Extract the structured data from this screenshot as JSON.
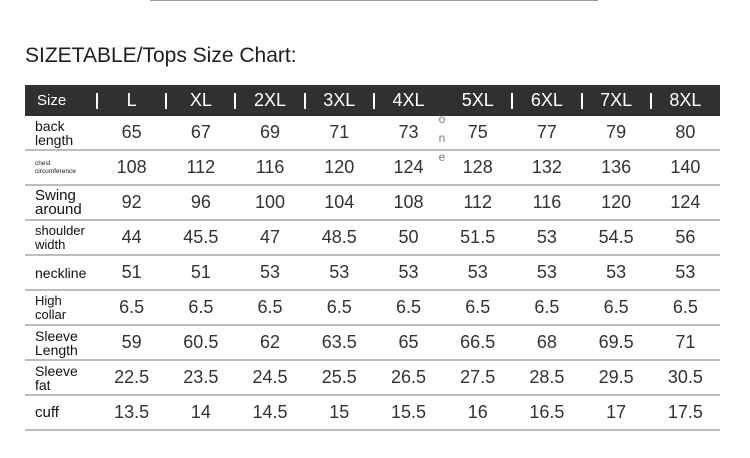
{
  "title": "SIZETABLE/Tops Size Chart:",
  "table": {
    "header_label": "Size",
    "sizes": [
      "L",
      "XL",
      "2XL",
      "3XL",
      "4XL",
      "5XL",
      "6XL",
      "7XL",
      "8XL"
    ],
    "rows": [
      {
        "label_lines": [
          "back",
          "length"
        ],
        "values": [
          "65",
          "67",
          "69",
          "71",
          "73",
          "75",
          "77",
          "79",
          "80"
        ]
      },
      {
        "label_lines": [
          "chest",
          "circumference"
        ],
        "values": [
          "108",
          "112",
          "116",
          "120",
          "124",
          "128",
          "132",
          "136",
          "140"
        ]
      },
      {
        "label_lines": [
          "Swing",
          "around"
        ],
        "values": [
          "92",
          "96",
          "100",
          "104",
          "108",
          "112",
          "116",
          "120",
          "124"
        ]
      },
      {
        "label_lines": [
          "shoulder",
          "width"
        ],
        "values": [
          "44",
          "45.5",
          "47",
          "48.5",
          "50",
          "51.5",
          "53",
          "54.5",
          "56"
        ]
      },
      {
        "label_lines": [
          "neckline"
        ],
        "values": [
          "51",
          "51",
          "53",
          "53",
          "53",
          "53",
          "53",
          "53",
          "53"
        ]
      },
      {
        "label_lines": [
          "High",
          "collar"
        ],
        "values": [
          "6.5",
          "6.5",
          "6.5",
          "6.5",
          "6.5",
          "6.5",
          "6.5",
          "6.5",
          "6.5"
        ]
      },
      {
        "label_lines": [
          "Sleeve",
          "Length"
        ],
        "values": [
          "59",
          "60.5",
          "62",
          "63.5",
          "65",
          "66.5",
          "68",
          "69.5",
          "71"
        ]
      },
      {
        "label_lines": [
          "Sleeve",
          "fat"
        ],
        "values": [
          "22.5",
          "23.5",
          "24.5",
          "25.5",
          "26.5",
          "27.5",
          "28.5",
          "29.5",
          "30.5"
        ]
      },
      {
        "label_lines": [
          "cuff"
        ],
        "values": [
          "13.5",
          "14",
          "14.5",
          "15",
          "15.5",
          "16",
          "16.5",
          "17",
          "17.5"
        ]
      }
    ]
  },
  "watermark_letters": [
    "o",
    "n",
    "e"
  ],
  "colors": {
    "header_bg": "#303030",
    "header_text": "#ffffff",
    "row_divider": "#bdbdbd",
    "value_text": "#333333"
  }
}
